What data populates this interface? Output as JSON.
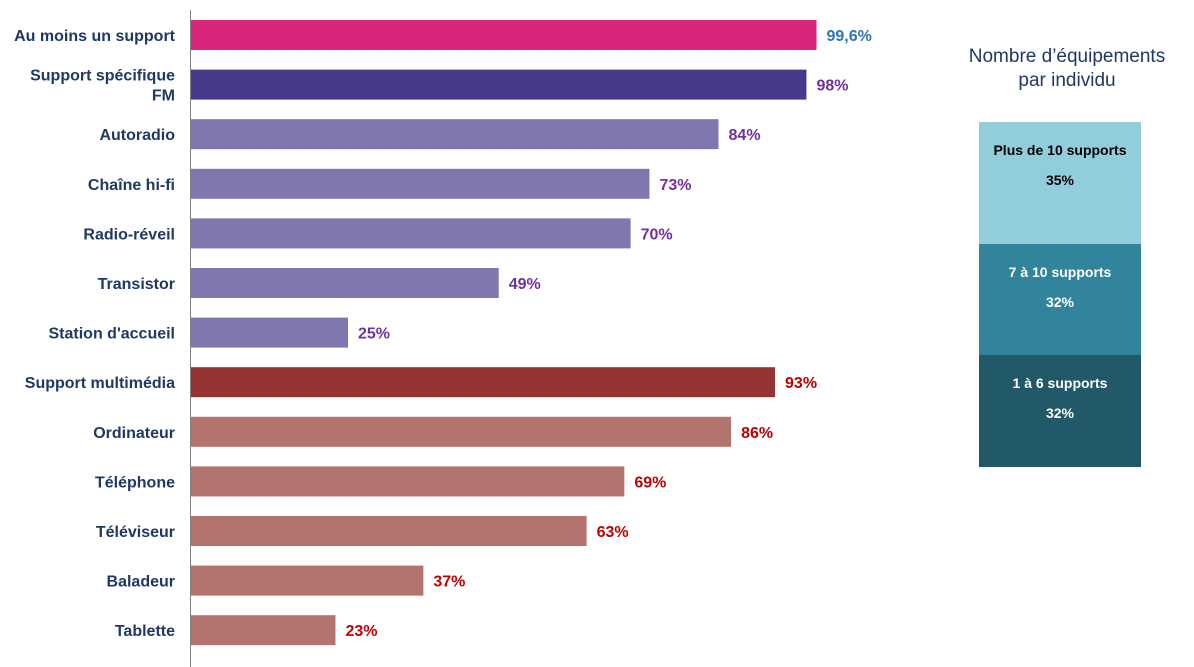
{
  "chart_data": [
    {
      "type": "bar",
      "orientation": "horizontal",
      "categories": [
        "Au moins un support",
        "Support spécifique FM",
        "Autoradio",
        "Chaîne hi-fi",
        "Radio-réveil",
        "Transistor",
        "Station d'accueil",
        "Support multimédia",
        "Ordinateur",
        "Téléphone",
        "Téléviseur",
        "Baladeur",
        "Tablette"
      ],
      "values": [
        99.6,
        98,
        84,
        73,
        70,
        49,
        25,
        93,
        86,
        69,
        63,
        37,
        23
      ],
      "value_labels": [
        "99,6%",
        "98%",
        "84%",
        "73%",
        "70%",
        "49%",
        "25%",
        "93%",
        "86%",
        "69%",
        "63%",
        "37%",
        "23%"
      ],
      "category_labels": [
        [
          "Au moins un support"
        ],
        [
          "Support spécifique",
          "FM"
        ],
        [
          "Autoradio"
        ],
        [
          "Chaîne hi-fi"
        ],
        [
          "Radio-réveil"
        ],
        [
          "Transistor"
        ],
        [
          "Station d'accueil"
        ],
        [
          "Support multimédia"
        ],
        [
          "Ordinateur"
        ],
        [
          "Téléphone"
        ],
        [
          "Téléviseur"
        ],
        [
          "Baladeur"
        ],
        [
          "Tablette"
        ]
      ],
      "bar_colors": [
        "#d9257a",
        "#463a8c",
        "#7f77ae",
        "#7f77ae",
        "#7f77ae",
        "#7f77ae",
        "#7f77ae",
        "#943434",
        "#b3736e",
        "#b3736e",
        "#b3736e",
        "#b3736e",
        "#b3736e"
      ],
      "label_colors": [
        "#2e75b6",
        "#7030a0",
        "#7030a0",
        "#7030a0",
        "#7030a0",
        "#7030a0",
        "#7030a0",
        "#c00000",
        "#c00000",
        "#c00000",
        "#c00000",
        "#c00000",
        "#c00000"
      ],
      "xlim": [
        0,
        100
      ],
      "xlabel": "",
      "ylabel": "",
      "grid": false
    },
    {
      "type": "stacked_bar",
      "title_lines": [
        "Nombre d’équipements",
        "par individu"
      ],
      "segments": [
        {
          "name": "Plus de 10 supports",
          "value": 35,
          "label": "35%",
          "color": "#92cddc",
          "text_color": "#000000"
        },
        {
          "name": "7 à 10 supports",
          "value": 32,
          "label": "32%",
          "color": "#31849b",
          "text_color": "#ffffff"
        },
        {
          "name": "1 à 6 supports",
          "value": 32,
          "label": "32%",
          "color": "#215968",
          "text_color": "#ffffff"
        }
      ]
    }
  ]
}
